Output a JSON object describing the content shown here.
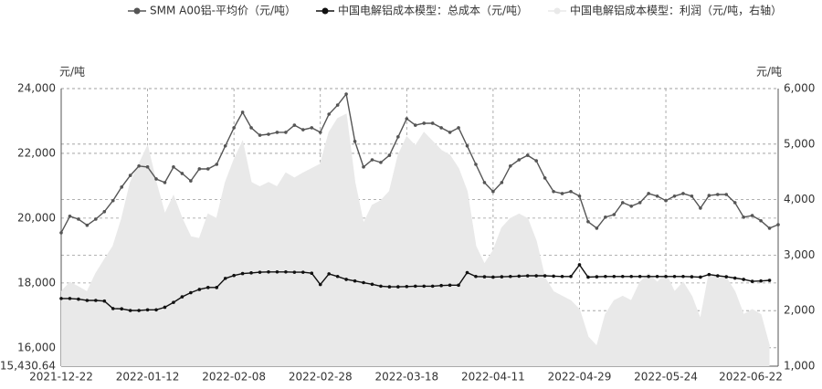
{
  "chart_data": {
    "type": "line",
    "legend": "top",
    "grid": true,
    "y_label": "元/吨",
    "y2_label": "元/吨",
    "ylim": [
      15430.64,
      24000
    ],
    "yticks": [
      {
        "value": 15430.64,
        "label": "15,430.64"
      },
      {
        "value": 16000,
        "label": "16,000"
      },
      {
        "value": 18000,
        "label": "18,000"
      },
      {
        "value": 20000,
        "label": "20,000"
      },
      {
        "value": 22000,
        "label": "22,000"
      },
      {
        "value": 24000,
        "label": "24,000"
      }
    ],
    "y2lim": [
      1000,
      6000
    ],
    "y2ticks": [
      {
        "value": 1000,
        "label": "1,000"
      },
      {
        "value": 2000,
        "label": "2,000"
      },
      {
        "value": 3000,
        "label": "3,000"
      },
      {
        "value": 4000,
        "label": "4,000"
      },
      {
        "value": 5000,
        "label": "5,000"
      },
      {
        "value": 6000,
        "label": "6,000"
      }
    ],
    "categories": [
      "2021-12-22",
      null,
      null,
      null,
      null,
      null,
      null,
      null,
      null,
      null,
      "2022-01-12",
      null,
      null,
      null,
      null,
      null,
      null,
      null,
      null,
      null,
      "2022-02-08",
      null,
      null,
      null,
      null,
      null,
      null,
      null,
      null,
      null,
      "2022-02-28",
      null,
      null,
      null,
      null,
      null,
      null,
      null,
      null,
      null,
      "2022-03-18",
      null,
      null,
      null,
      null,
      null,
      null,
      null,
      null,
      null,
      "2022-04-11",
      null,
      null,
      null,
      null,
      null,
      null,
      null,
      null,
      null,
      "2022-04-29",
      null,
      null,
      null,
      null,
      null,
      null,
      null,
      null,
      null,
      "2022-05-24",
      null,
      null,
      null,
      null,
      null,
      null,
      null,
      null,
      null,
      null,
      null,
      null,
      "2022-06-22"
    ],
    "series": [
      {
        "name": "中国电解铝成本模型：利润（元/吨，右轴）",
        "color": "#e9e9e9",
        "axis": "y2",
        "kind": "area",
        "values": [
          2340,
          2510,
          2430,
          2340,
          2670,
          2920,
          3160,
          3660,
          4310,
          4640,
          4970,
          4310,
          3740,
          4070,
          3660,
          3330,
          3300,
          3740,
          3660,
          4310,
          4720,
          5050,
          4310,
          4230,
          4310,
          4230,
          4480,
          4390,
          4480,
          4560,
          4640,
          5210,
          5460,
          5540,
          4310,
          3570,
          3900,
          3980,
          4150,
          4800,
          5130,
          4970,
          5210,
          5050,
          4890,
          4800,
          4560,
          4150,
          3160,
          2840,
          3080,
          3490,
          3660,
          3740,
          3660,
          3250,
          2590,
          2340,
          2260,
          2180,
          2020,
          1530,
          1360,
          1930,
          2180,
          2260,
          2180,
          2510,
          2670,
          2510,
          2670,
          2340,
          2510,
          2260,
          1850,
          2670,
          2590,
          2590,
          2340,
          1930,
          2020,
          1930,
          1360,
          null
        ]
      },
      {
        "name": "SMM A00铝-平均价（元/吨）",
        "color": "#555555",
        "values": [
          19550,
          20060,
          19970,
          19780,
          19970,
          20200,
          20540,
          20960,
          21320,
          21610,
          21580,
          21210,
          21100,
          21580,
          21380,
          21150,
          21520,
          21520,
          21660,
          22230,
          22790,
          23270,
          22790,
          22560,
          22590,
          22650,
          22650,
          22870,
          22730,
          22790,
          22650,
          23210,
          23490,
          23830,
          22370,
          21580,
          21800,
          21720,
          21940,
          22510,
          23070,
          22870,
          22930,
          22930,
          22790,
          22650,
          22790,
          22230,
          21660,
          21100,
          20820,
          21100,
          21610,
          21800,
          21940,
          21770,
          21240,
          20820,
          20760,
          20820,
          20680,
          19890,
          19690,
          20030,
          20110,
          20480,
          20370,
          20480,
          20760,
          20680,
          20540,
          20680,
          20760,
          20680,
          20310,
          20700,
          20730,
          20730,
          20480,
          20030,
          20080,
          19920,
          19690,
          19800
        ]
      },
      {
        "name": "中国电解铝成本模型：总成本（元/吨）",
        "color": "#111111",
        "values": [
          17520,
          17520,
          17500,
          17460,
          17460,
          17440,
          17210,
          17200,
          17150,
          17150,
          17170,
          17170,
          17250,
          17400,
          17570,
          17700,
          17800,
          17860,
          17860,
          18140,
          18230,
          18290,
          18310,
          18330,
          18340,
          18340,
          18340,
          18330,
          18330,
          18300,
          17950,
          18280,
          18200,
          18110,
          18060,
          18010,
          17960,
          17900,
          17880,
          17880,
          17890,
          17900,
          17900,
          17900,
          17920,
          17930,
          17930,
          18320,
          18200,
          18190,
          18180,
          18190,
          18200,
          18210,
          18220,
          18220,
          18220,
          18210,
          18200,
          18200,
          18560,
          18180,
          18190,
          18200,
          18200,
          18200,
          18200,
          18200,
          18200,
          18200,
          18200,
          18200,
          18200,
          18190,
          18180,
          18260,
          18220,
          18190,
          18150,
          18110,
          18050,
          18060,
          18080,
          null
        ]
      }
    ]
  }
}
